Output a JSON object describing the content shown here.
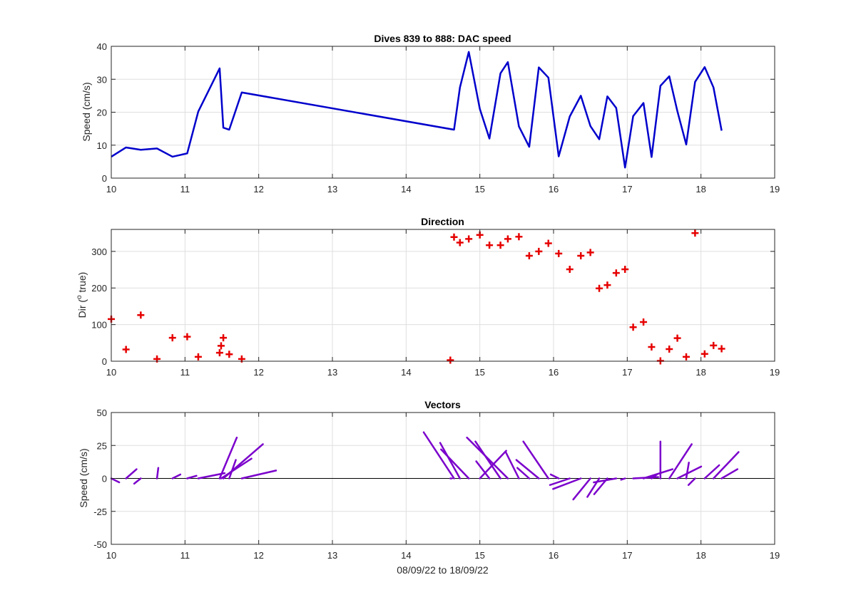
{
  "chart_data": [
    {
      "type": "line",
      "title": "Dives 839 to 888: DAC speed",
      "xlabel": "",
      "ylabel": "Speed (cm/s)",
      "xlim": [
        10,
        19
      ],
      "ylim": [
        0,
        40
      ],
      "xticks": [
        10,
        11,
        12,
        13,
        14,
        15,
        16,
        17,
        18,
        19
      ],
      "yticks": [
        0,
        10,
        20,
        30,
        40
      ],
      "grid": true,
      "color": "#0000cc",
      "x": [
        10.0,
        10.2,
        10.4,
        10.62,
        10.83,
        11.03,
        11.18,
        11.47,
        11.52,
        11.6,
        11.77,
        14.65,
        14.73,
        14.85,
        15.0,
        15.13,
        15.28,
        15.38,
        15.53,
        15.67,
        15.8,
        15.93,
        16.07,
        16.22,
        16.37,
        16.5,
        16.62,
        16.73,
        16.85,
        16.97,
        17.08,
        17.22,
        17.33,
        17.45,
        17.57,
        17.68,
        17.8,
        17.92,
        18.05,
        18.17,
        18.28
      ],
      "y": [
        6.5,
        9.3,
        8.6,
        9.0,
        6.5,
        7.5,
        20.2,
        33.3,
        15.3,
        14.7,
        26.0,
        14.7,
        27.5,
        38.3,
        21.0,
        12.0,
        31.8,
        35.2,
        15.7,
        9.5,
        33.6,
        30.5,
        6.6,
        18.7,
        25.0,
        15.8,
        11.8,
        24.8,
        21.3,
        3.2,
        18.8,
        22.8,
        6.4,
        28.0,
        30.9,
        20.3,
        10.2,
        29.2,
        33.7,
        27.5,
        14.4
      ]
    },
    {
      "type": "scatter",
      "title": "Direction",
      "xlabel": "",
      "ylabel": "Dir (o true)",
      "ylabel_parts": {
        "pre": "Dir (",
        "sup": "o",
        "post": " true)"
      },
      "xlim": [
        10,
        19
      ],
      "ylim": [
        0,
        360
      ],
      "xticks": [
        10,
        11,
        12,
        13,
        14,
        15,
        16,
        17,
        18,
        19
      ],
      "yticks": [
        0,
        100,
        200,
        300
      ],
      "grid": true,
      "marker": "+",
      "color": "#e60000",
      "x": [
        10.0,
        10.2,
        10.4,
        10.62,
        10.83,
        11.03,
        11.18,
        11.47,
        11.49,
        11.52,
        11.6,
        11.77,
        14.6,
        14.65,
        14.73,
        14.85,
        15.0,
        15.13,
        15.28,
        15.38,
        15.53,
        15.67,
        15.8,
        15.93,
        16.07,
        16.22,
        16.37,
        16.5,
        16.62,
        16.73,
        16.85,
        16.97,
        17.08,
        17.22,
        17.33,
        17.45,
        17.57,
        17.68,
        17.8,
        17.92,
        18.05,
        18.17,
        18.28
      ],
      "y": [
        115,
        32,
        126,
        6,
        64,
        67,
        12,
        23,
        42,
        64,
        19,
        6,
        3,
        339,
        324,
        334,
        345,
        317,
        317,
        334,
        340,
        288,
        300,
        322,
        294,
        251,
        288,
        297,
        199,
        208,
        241,
        251,
        93,
        107,
        39,
        1,
        33,
        63,
        12,
        350,
        20,
        43,
        34
      ]
    },
    {
      "type": "vector",
      "title": "Vectors",
      "xlabel": "08/09/22 to 18/09/22",
      "ylabel": "Speed (cm/s)",
      "xlim": [
        10,
        19
      ],
      "ylim": [
        -50,
        50
      ],
      "xticks": [
        10,
        11,
        12,
        13,
        14,
        15,
        16,
        17,
        18,
        19
      ],
      "yticks": [
        -50,
        -25,
        0,
        25,
        50
      ],
      "grid": true,
      "color": "#7b00cc",
      "x": [
        10.0,
        10.2,
        10.4,
        10.62,
        10.83,
        11.03,
        11.18,
        11.47,
        11.49,
        11.52,
        11.6,
        11.77,
        14.6,
        14.65,
        14.73,
        14.85,
        15.0,
        15.13,
        15.28,
        15.38,
        15.53,
        15.67,
        15.8,
        15.93,
        16.07,
        16.22,
        16.37,
        16.5,
        16.62,
        16.73,
        16.85,
        16.97,
        17.08,
        17.22,
        17.33,
        17.45,
        17.57,
        17.68,
        17.8,
        17.92,
        18.05,
        18.17,
        18.28
      ],
      "u": [
        6,
        8,
        -5,
        1,
        6,
        7,
        20,
        13,
        23,
        30,
        5,
        26,
        1,
        -23,
        -15,
        -21,
        20,
        -10,
        -19,
        -31,
        -10,
        -9,
        -17,
        -19,
        -6,
        -15,
        -21,
        -13,
        -9,
        -10,
        -17,
        -3,
        19,
        22,
        4,
        0,
        17,
        18,
        2,
        -5,
        11,
        19,
        12
      ],
      "v": [
        -3,
        7,
        -4,
        8,
        3,
        2,
        4,
        31,
        15,
        26,
        14,
        6,
        0,
        35,
        27,
        22,
        21,
        13,
        28,
        31,
        20,
        8,
        14,
        28,
        3,
        -5,
        -8,
        -16,
        -14,
        -12,
        -3,
        -1,
        1,
        7,
        3,
        28,
        26,
        9,
        12,
        -5,
        10,
        20,
        7
      ]
    }
  ]
}
